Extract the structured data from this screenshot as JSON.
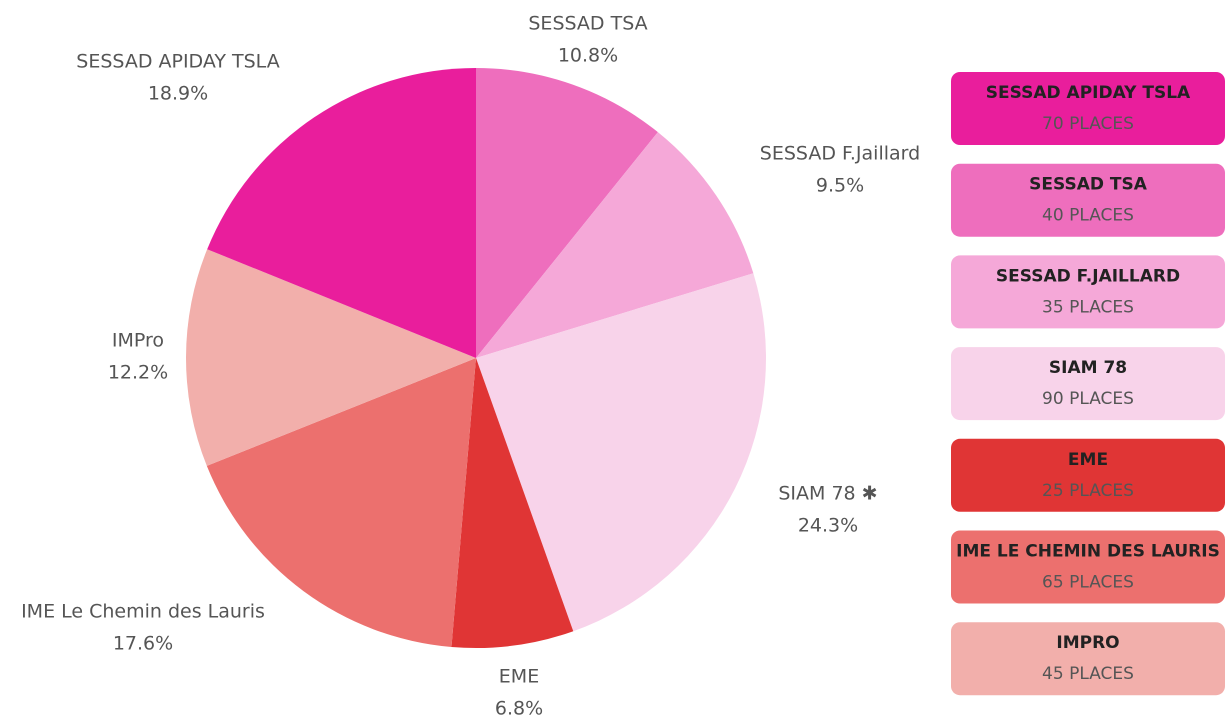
{
  "chart_data": {
    "type": "pie",
    "categories": [
      "SESSAD TSA",
      "SESSAD F.Jaillard",
      "SIAM 78 ✱",
      "EME",
      "IME Le Chemin des Lauris",
      "IMPro",
      "SESSAD APIDAY TSLA"
    ],
    "values": [
      10.8,
      9.5,
      24.3,
      6.8,
      17.6,
      12.2,
      18.9
    ],
    "value_labels": [
      "10.8%",
      "9.5%",
      "24.3%",
      "6.8%",
      "17.6%",
      "12.2%",
      "18.9%"
    ],
    "colors": [
      "#ee6ebd",
      "#f5a8d8",
      "#f8d3ea",
      "#e03535",
      "#ec706e",
      "#f2afab",
      "#e91e9c"
    ],
    "legend": [
      {
        "name": "SESSAD APIDAY TSLA",
        "text": "70 PLACES",
        "color": "#e91e9c"
      },
      {
        "name": "SESSAD TSA",
        "text": "40 PLACES",
        "color": "#ee6ebd"
      },
      {
        "name": "SESSAD F.JAILLARD",
        "text": "35 PLACES",
        "color": "#f5a8d8"
      },
      {
        "name": "SIAM 78",
        "text": "90 PLACES",
        "color": "#f8d3ea"
      },
      {
        "name": "EME",
        "text": "25 PLACES",
        "color": "#e03535"
      },
      {
        "name": "IME LE CHEMIN DES LAURIS",
        "text": "65 PLACES",
        "color": "#ec706e"
      },
      {
        "name": "IMPRO",
        "text": "45 PLACES",
        "color": "#f2afab"
      }
    ]
  }
}
